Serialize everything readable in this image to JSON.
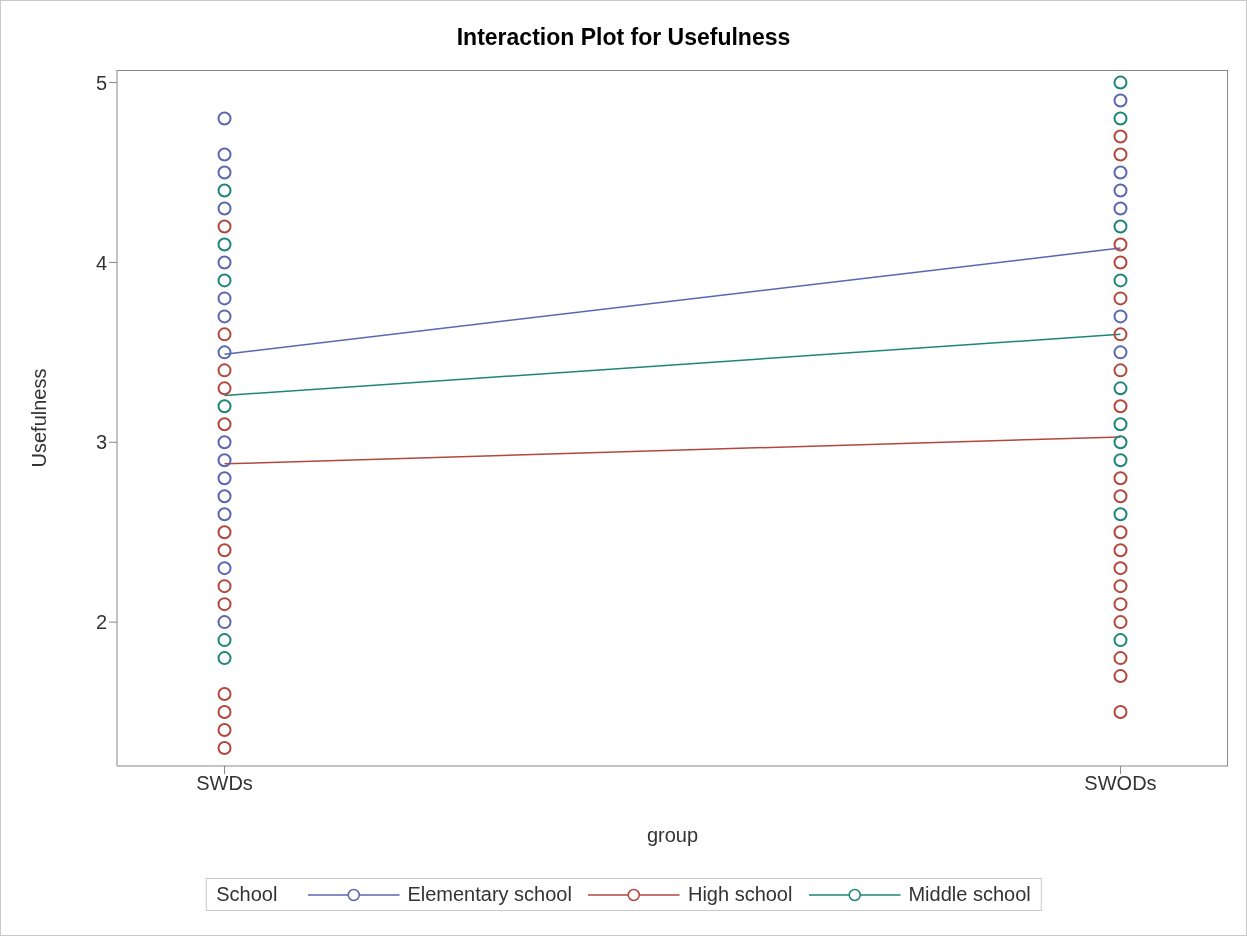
{
  "chart_data": {
    "type": "line",
    "title": "Interaction Plot for Usefulness",
    "xlabel": "group",
    "ylabel": "Usefulness",
    "legend_title": "School",
    "legend": "bottom",
    "grid": false,
    "categories": [
      "SWDs",
      "SWODs"
    ],
    "ylim": [
      1.2,
      5.07
    ],
    "yticks": [
      2,
      3,
      4,
      5
    ],
    "series": [
      {
        "name": "Elementary school",
        "marker": "none",
        "color": "#5a67b0",
        "values": [
          3.49,
          4.08
        ]
      },
      {
        "name": "High school",
        "marker": "none",
        "color": "#b2473e",
        "values": [
          2.88,
          3.03
        ]
      },
      {
        "name": "Middle school",
        "marker": "none",
        "color": "#1e8579",
        "values": [
          3.26,
          3.6
        ]
      },
      {
        "type": "scatter",
        "marker": "circle",
        "color": "#5a67b0",
        "x": [
          "SWDs",
          "SWDs",
          "SWDs",
          "SWDs",
          "SWDs",
          "SWDs",
          "SWDs",
          "SWDs",
          "SWDs",
          "SWDs",
          "SWDs",
          "SWDs",
          "SWDs",
          "SWDs",
          "SWDs",
          "SWODs",
          "SWODs",
          "SWODs",
          "SWODs",
          "SWODs",
          "SWODs"
        ],
        "values": [
          4.8,
          4.6,
          4.5,
          4.3,
          4.0,
          3.8,
          3.7,
          3.5,
          3.0,
          2.9,
          2.8,
          2.7,
          2.6,
          2.3,
          2.0,
          4.9,
          4.5,
          4.4,
          4.3,
          3.7,
          3.5
        ]
      },
      {
        "type": "scatter",
        "marker": "circle",
        "color": "#b2473e",
        "x": [
          "SWDs",
          "SWDs",
          "SWDs",
          "SWDs",
          "SWDs",
          "SWDs",
          "SWDs",
          "SWDs",
          "SWDs",
          "SWDs",
          "SWDs",
          "SWDs",
          "SWDs",
          "SWODs",
          "SWODs",
          "SWODs",
          "SWODs",
          "SWODs",
          "SWODs",
          "SWODs",
          "SWODs",
          "SWODs",
          "SWODs",
          "SWODs",
          "SWODs",
          "SWODs",
          "SWODs",
          "SWODs",
          "SWODs",
          "SWODs",
          "SWODs",
          "SWODs"
        ],
        "values": [
          4.2,
          3.6,
          3.4,
          3.3,
          3.1,
          2.5,
          2.4,
          2.2,
          2.1,
          1.6,
          1.5,
          1.4,
          1.3,
          4.7,
          4.6,
          4.1,
          4.0,
          3.8,
          3.6,
          3.4,
          3.2,
          2.8,
          2.7,
          2.5,
          2.4,
          2.3,
          2.2,
          2.1,
          2.0,
          1.8,
          1.7,
          1.5
        ]
      },
      {
        "type": "scatter",
        "marker": "circle",
        "color": "#1e8579",
        "x": [
          "SWDs",
          "SWDs",
          "SWDs",
          "SWDs",
          "SWDs",
          "SWDs",
          "SWODs",
          "SWODs",
          "SWODs",
          "SWODs",
          "SWODs",
          "SWODs",
          "SWODs",
          "SWODs",
          "SWODs",
          "SWODs"
        ],
        "values": [
          4.4,
          4.1,
          3.9,
          3.2,
          1.9,
          1.8,
          5.0,
          4.8,
          4.2,
          3.9,
          3.3,
          3.1,
          3.0,
          2.9,
          2.6,
          1.9
        ]
      }
    ]
  }
}
